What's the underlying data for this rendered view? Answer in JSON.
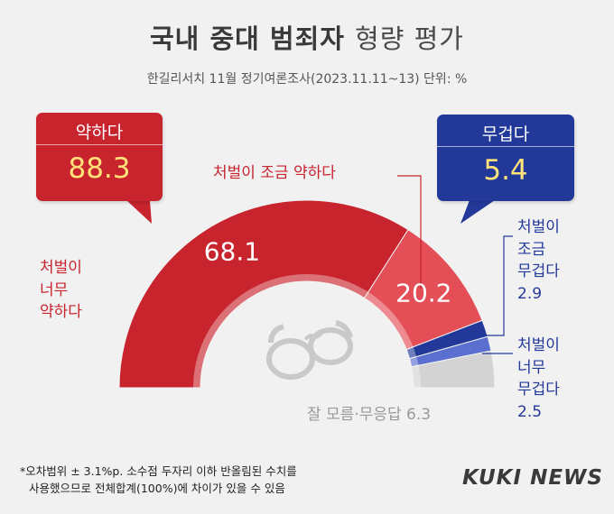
{
  "header": {
    "title_bold": "국내 중대 범죄자",
    "title_light": "형량 평가",
    "subtitle": "한길리서치 11월 정기여론조사(2023.11.11~13) 단위: %"
  },
  "summary": {
    "weak_label": "약하다",
    "weak_value": "88.3",
    "heavy_label": "무겁다",
    "heavy_value": "5.4"
  },
  "chart_data": {
    "type": "pie",
    "variant": "semi-donut",
    "unit": "%",
    "slices": [
      {
        "label": "처벌이 너무 약하다",
        "value": 68.1,
        "color": "#c8242e"
      },
      {
        "label": "처벌이 조금 약하다",
        "value": 20.2,
        "color": "#e34e57"
      },
      {
        "label": "처벌이 조금 무겁다",
        "value": 2.9,
        "color": "#23399a"
      },
      {
        "label": "처벌이 너무 무겁다",
        "value": 2.5,
        "color": "#5a6fd0"
      },
      {
        "label": "잘 모름·무응답",
        "value": 6.3,
        "color": "#d3d3d3"
      }
    ],
    "data_labels": {
      "slice0": "68.1",
      "slice1": "20.2"
    },
    "annotations": {
      "very_weak": [
        "처벌이",
        "너무",
        "약하다"
      ],
      "slightly_weak": "처벌이 조금 약하다",
      "slightly_heavy": [
        "처벌이",
        "조금",
        "무겁다",
        "2.9"
      ],
      "very_heavy": [
        "처벌이",
        "너무",
        "무겁다",
        "2.5"
      ],
      "unknown": "잘 모름·무응답 6.3"
    }
  },
  "footer": {
    "note_line1": "*오차범위 ± 3.1%p. 소수점 두자리 이하 반올림된 수치를",
    "note_line2": "사용했으므로 전체합계(100%)에 차이가 있을 수 있음",
    "logo": "KUKI NEWS"
  },
  "icons": {
    "handcuffs": "handcuffs-icon"
  }
}
